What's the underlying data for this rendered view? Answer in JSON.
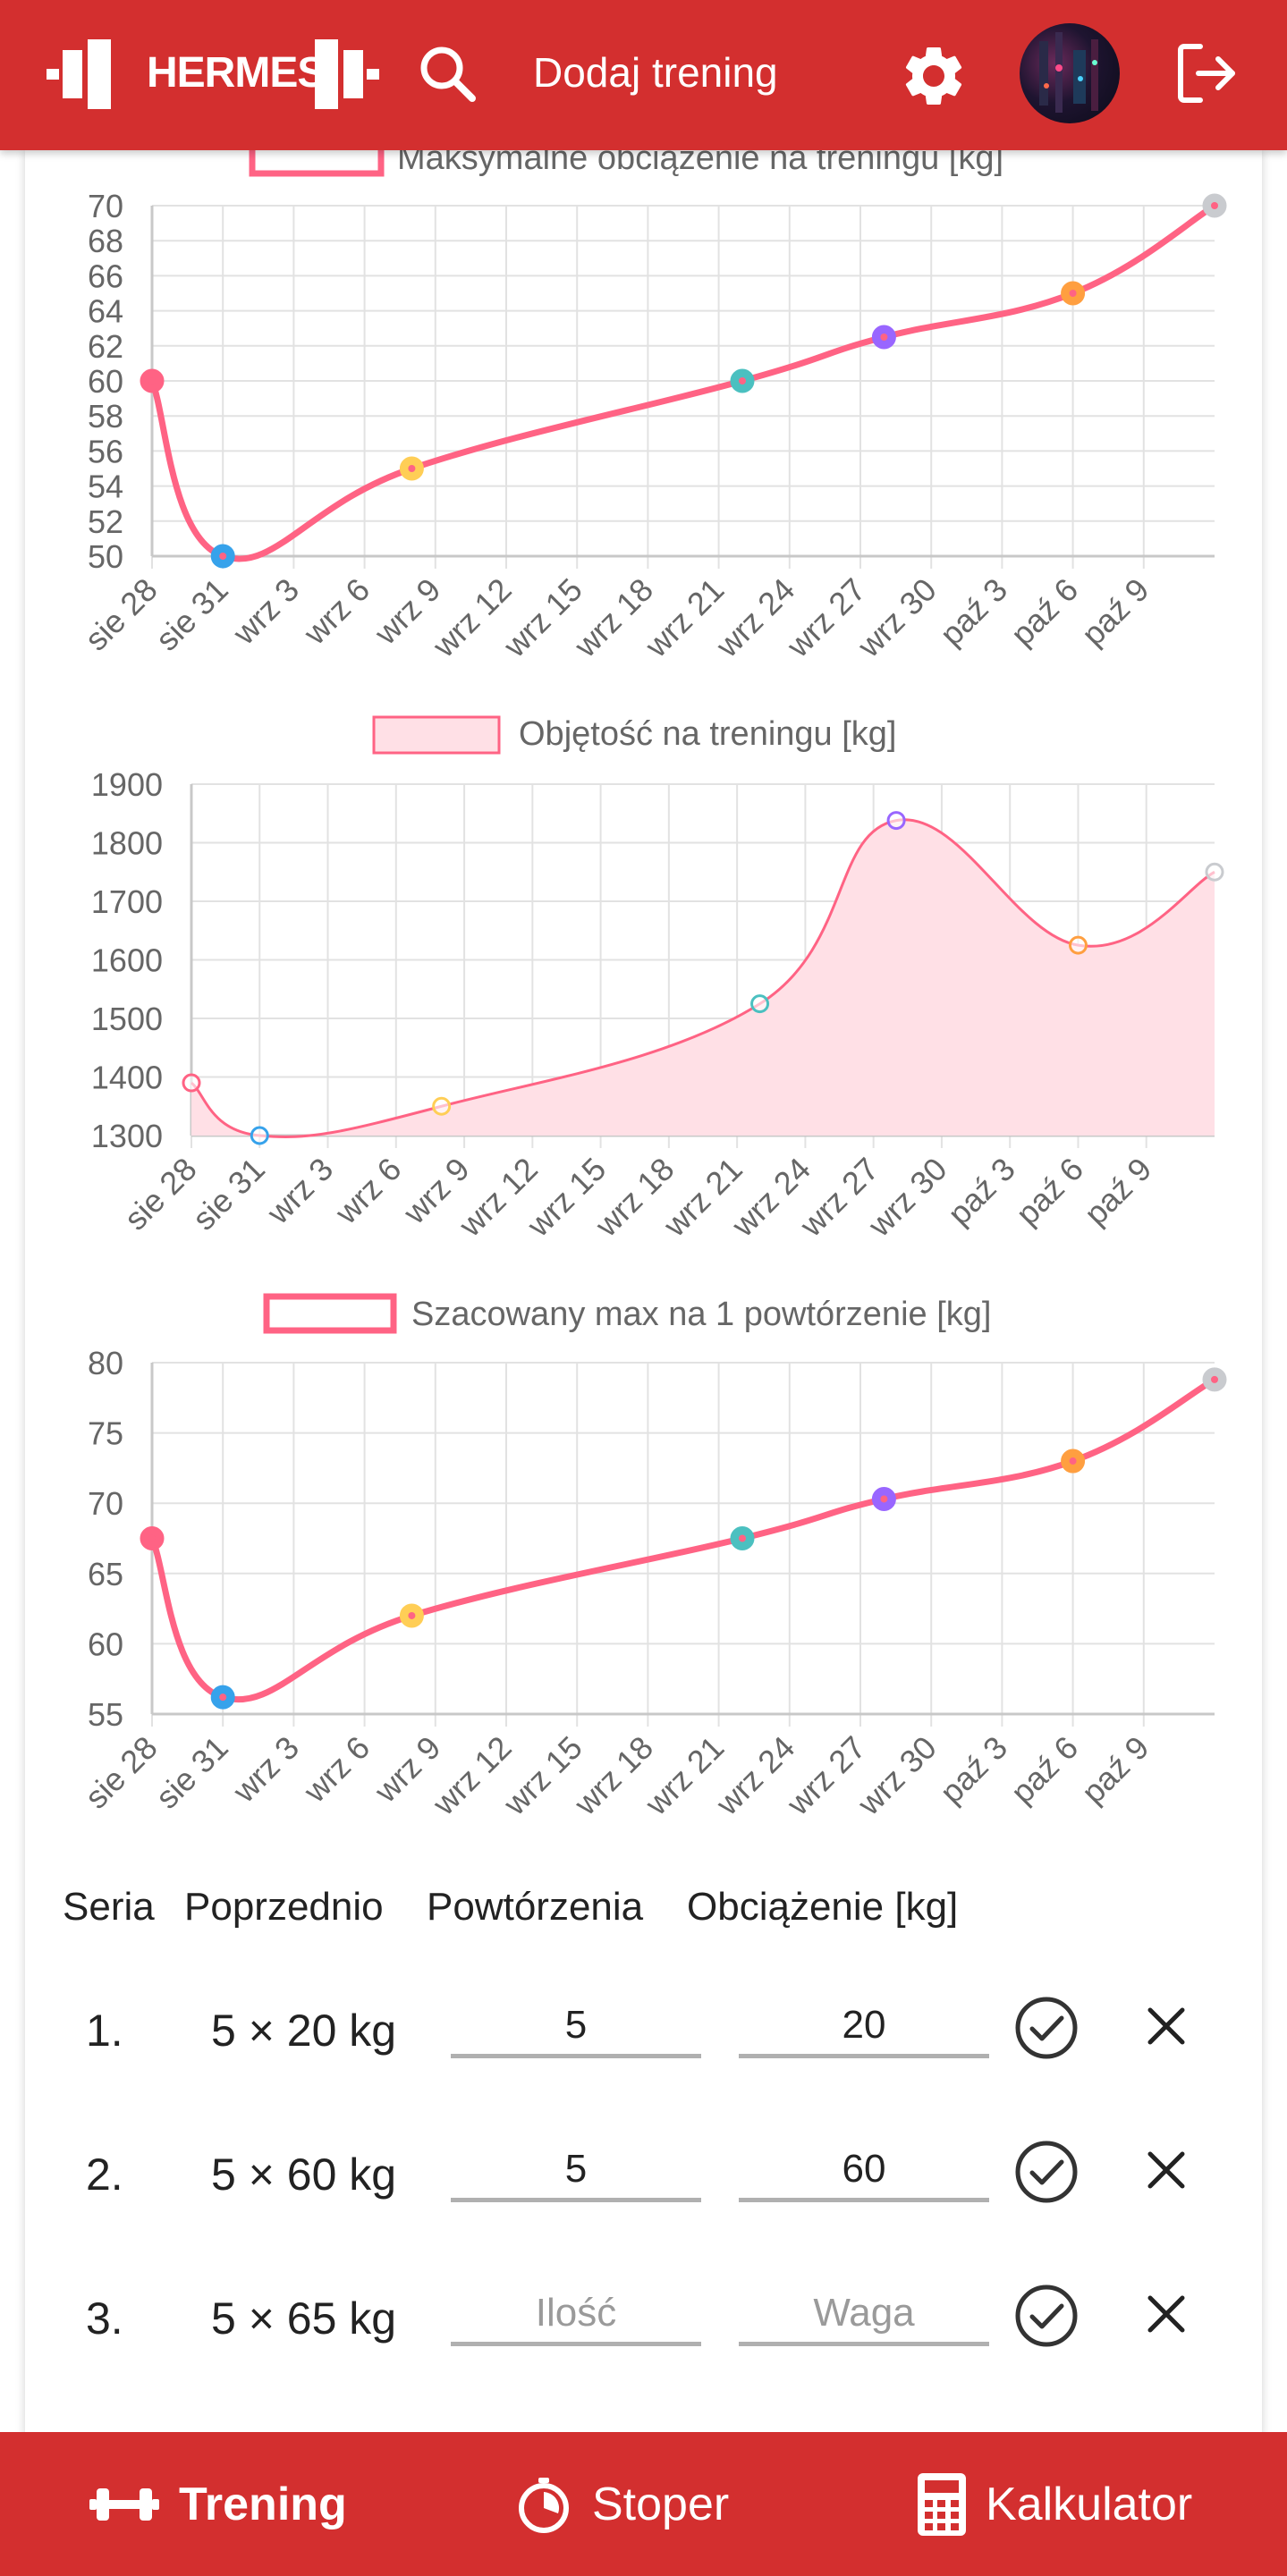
{
  "header": {
    "logo_text": "HERMES",
    "title": "Dodaj trening",
    "icons": [
      "dumbbell-icon",
      "search-icon",
      "gear-icon",
      "logout-icon"
    ]
  },
  "charts": [
    {
      "legend": "Maksymalne obciążenie na treningu [kg]"
    },
    {
      "legend": "Objętość na treningu [kg]"
    },
    {
      "legend": "Szacowany max na 1 powtórzenie [kg]"
    }
  ],
  "chart_data": [
    {
      "type": "line",
      "title": "",
      "x_ticks": [
        "sie 28",
        "sie 31",
        "wrz 3",
        "wrz 6",
        "wrz 9",
        "wrz 12",
        "wrz 15",
        "wrz 18",
        "wrz 21",
        "wrz 24",
        "wrz 27",
        "wrz 30",
        "paź 3",
        "paź 6",
        "paź 9"
      ],
      "y_ticks": [
        50,
        52,
        54,
        56,
        58,
        60,
        62,
        64,
        66,
        68,
        70
      ],
      "ylim": [
        50,
        70
      ],
      "series": [
        {
          "name": "Maksymalne obciążenie na treningu [kg]",
          "points": [
            [
              "sie 28",
              60
            ],
            [
              "sie 31",
              50
            ],
            [
              "wrz 8",
              55
            ],
            [
              "wrz 22",
              60
            ],
            [
              "wrz 28",
              62.5
            ],
            [
              "paź 6",
              65
            ],
            [
              "paź 12",
              70
            ]
          ]
        }
      ],
      "grid": true,
      "legend_position": "top"
    },
    {
      "type": "area",
      "title": "",
      "x_ticks": [
        "sie 28",
        "sie 31",
        "wrz 3",
        "wrz 6",
        "wrz 9",
        "wrz 12",
        "wrz 15",
        "wrz 18",
        "wrz 21",
        "wrz 24",
        "wrz 27",
        "wrz 30",
        "paź 3",
        "paź 6",
        "paź 9"
      ],
      "y_ticks": [
        1300,
        1400,
        1500,
        1600,
        1700,
        1800,
        1900
      ],
      "ylim": [
        1300,
        1900
      ],
      "series": [
        {
          "name": "Objętość na treningu [kg]",
          "points": [
            [
              "sie 28",
              1390
            ],
            [
              "sie 31",
              1300
            ],
            [
              "wrz 8",
              1350
            ],
            [
              "wrz 22",
              1525
            ],
            [
              "wrz 28",
              1838
            ],
            [
              "paź 6",
              1625
            ],
            [
              "paź 12",
              1750
            ]
          ]
        }
      ],
      "grid": true,
      "legend_position": "top"
    },
    {
      "type": "line",
      "title": "",
      "x_ticks": [
        "sie 28",
        "sie 31",
        "wrz 3",
        "wrz 6",
        "wrz 9",
        "wrz 12",
        "wrz 15",
        "wrz 18",
        "wrz 21",
        "wrz 24",
        "wrz 27",
        "wrz 30",
        "paź 3",
        "paź 6",
        "paź 9"
      ],
      "y_ticks": [
        55,
        60,
        65,
        70,
        75,
        80
      ],
      "ylim": [
        55,
        80
      ],
      "series": [
        {
          "name": "Szacowany max na 1 powtórzenie [kg]",
          "points": [
            [
              "sie 28",
              67.5
            ],
            [
              "sie 31",
              56.2
            ],
            [
              "wrz 8",
              62
            ],
            [
              "wrz 22",
              67.5
            ],
            [
              "wrz 28",
              70.3
            ],
            [
              "paź 6",
              73
            ],
            [
              "paź 12",
              78.8
            ]
          ]
        }
      ],
      "grid": true,
      "legend_position": "top"
    }
  ],
  "table": {
    "headers": [
      "Seria",
      "Poprzednio",
      "Powtórzenia",
      "Obciążenie [kg]"
    ],
    "rows": [
      {
        "num": "1.",
        "prev": "5 × 20 kg",
        "reps": "5",
        "weight": "20"
      },
      {
        "num": "2.",
        "prev": "5 × 60 kg",
        "reps": "5",
        "weight": "60"
      },
      {
        "num": "3.",
        "prev": "5 × 65 kg",
        "reps": "",
        "weight": ""
      }
    ],
    "reps_placeholder": "Ilość",
    "weight_placeholder": "Waga"
  },
  "bottom_nav": [
    {
      "label": "Trening",
      "icon": "dumbbell-icon",
      "active": true
    },
    {
      "label": "Stoper",
      "icon": "stopwatch-icon",
      "active": false
    },
    {
      "label": "Kalkulator",
      "icon": "calculator-icon",
      "active": false
    }
  ],
  "colors": {
    "brand": "#d32f2f",
    "line": "#ff6384",
    "area_fill": "#ffe0e6",
    "points": [
      "#ff6384",
      "#36a2eb",
      "#ffce56",
      "#4bc0c0",
      "#9966ff",
      "#ff9f40",
      "#c9cbcf"
    ]
  }
}
